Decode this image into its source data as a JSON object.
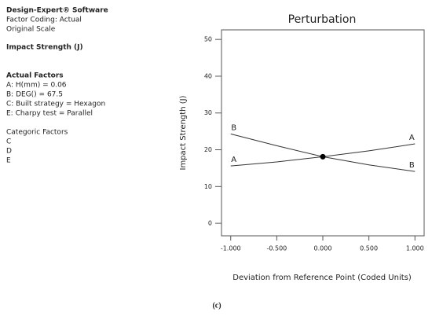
{
  "info": {
    "software": "Design-Expert® Software",
    "lines": [
      "Factor Coding: Actual",
      "Original Scale"
    ],
    "response": "Impact Strength (J)",
    "factors_title": "Actual Factors",
    "factors": [
      "A: H(mm) = 0.06",
      "B: DEG() = 67.5",
      "C: Built strategy = Hexagon",
      "E: Charpy test = Parallel"
    ],
    "categoric_title": "Categoric Factors",
    "categoric": [
      "C",
      "D",
      "E"
    ]
  },
  "caption": "(c)",
  "chart_data": {
    "type": "line",
    "title": "Perturbation",
    "x_label": "Deviation from Reference Point (Coded Units)",
    "y_label": "Impact Strength (J)",
    "x": [
      -1,
      -0.5,
      0,
      0.5,
      1
    ],
    "series": [
      {
        "name": "A",
        "color": "#333333",
        "values": [
          15.6,
          16.7,
          18.1,
          19.7,
          21.6
        ]
      },
      {
        "name": "B",
        "color": "#333333",
        "values": [
          24.3,
          21.1,
          18.1,
          15.9,
          14.1
        ]
      }
    ],
    "reference_point": {
      "x": 0,
      "y": 18.1
    },
    "xlim": [
      -1.1,
      1.1
    ],
    "ylim": [
      -3.4,
      52.6
    ],
    "xticks": [
      {
        "value": -1,
        "label": "-1.000"
      },
      {
        "value": -0.5,
        "label": "-0.500"
      },
      {
        "value": 0,
        "label": "0.000"
      },
      {
        "value": 0.5,
        "label": "0.500"
      },
      {
        "value": 1,
        "label": "1.000"
      }
    ],
    "yticks": [
      0,
      10,
      20,
      30,
      40,
      50
    ]
  }
}
